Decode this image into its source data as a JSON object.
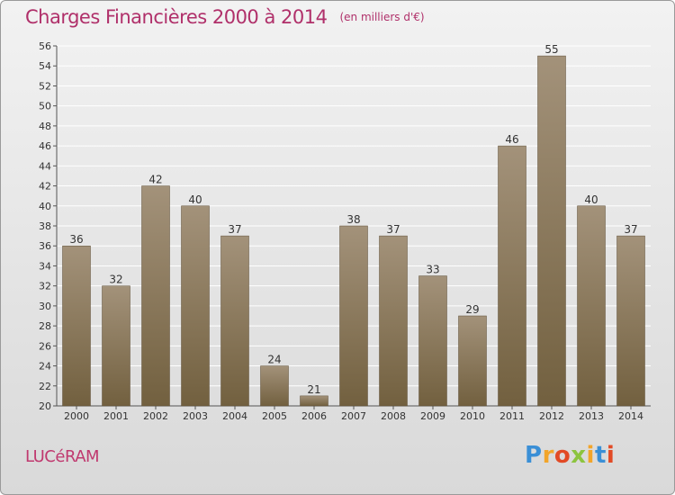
{
  "header": {
    "title": "Charges Financières 2000 à 2014",
    "subtitle": "(en milliers d'€)"
  },
  "footer": {
    "town": "LUCéRAM",
    "logo_text": "Proxiti"
  },
  "colors": {
    "bar_top": "#a3927a",
    "bar_bottom": "#72603f",
    "title": "#b0306a",
    "grid": "#ffffff"
  },
  "chart_data": {
    "type": "bar",
    "categories": [
      "2000",
      "2001",
      "2002",
      "2003",
      "2004",
      "2005",
      "2006",
      "2007",
      "2008",
      "2009",
      "2010",
      "2011",
      "2012",
      "2013",
      "2014"
    ],
    "values": [
      36,
      32,
      42,
      40,
      37,
      24,
      21,
      38,
      37,
      33,
      29,
      46,
      55,
      40,
      37
    ],
    "title": "Charges Financières 2000 à 2014",
    "subtitle": "(en milliers d'€)",
    "xlabel": "",
    "ylabel": "",
    "ylim": [
      20,
      56
    ],
    "yticks": [
      20,
      22,
      24,
      26,
      28,
      30,
      32,
      34,
      36,
      38,
      40,
      42,
      44,
      46,
      48,
      50,
      52,
      54,
      56
    ],
    "grid": true,
    "data_labels": true
  }
}
